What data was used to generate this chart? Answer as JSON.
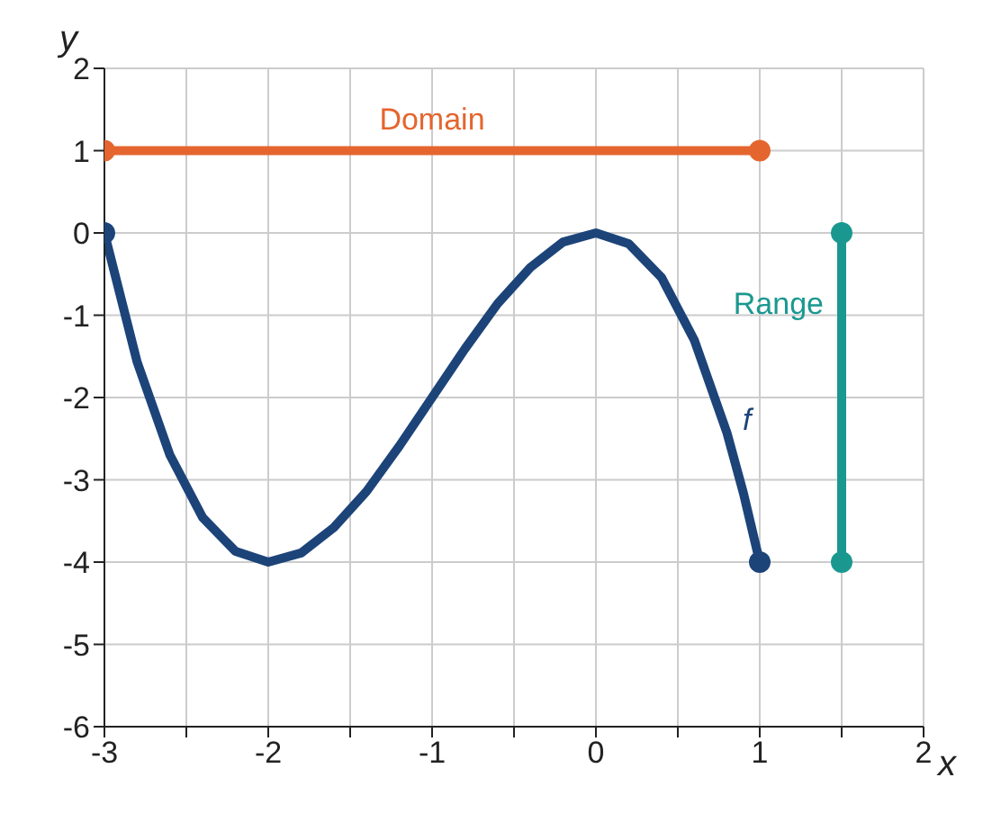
{
  "chart_data": {
    "type": "line",
    "xlabel": "x",
    "ylabel": "y",
    "xlim": [
      -3,
      2
    ],
    "ylim": [
      -6,
      2
    ],
    "xticks": [
      -3,
      {
        "value": -2.5,
        "label": null
      },
      -2,
      {
        "value": -1.5,
        "label": null
      },
      -1,
      {
        "value": -0.5,
        "label": null
      },
      0,
      {
        "value": 0.5,
        "label": null
      },
      1,
      {
        "value": 1.5,
        "label": null
      },
      2
    ],
    "yticks": [
      -6,
      -5,
      -4,
      -3,
      -2,
      -1,
      0,
      1,
      2
    ],
    "grid": true,
    "line_style": "solid",
    "series": [
      {
        "name": "Domain",
        "color": "#e5652e",
        "marker": "circle",
        "x": [
          -3,
          1
        ],
        "values": [
          1,
          1
        ]
      },
      {
        "name": "Range",
        "color": "#1a9890",
        "marker": "circle",
        "x": [
          1.5,
          1.5
        ],
        "values": [
          0,
          -4
        ]
      },
      {
        "name": "f",
        "color": "#1d4479",
        "marker": "none",
        "x": [
          -3,
          -2.8,
          -2.6,
          -2.4,
          -2.2,
          -2,
          -1.8,
          -1.6,
          -1.4,
          -1.2,
          -1,
          -0.8,
          -0.6,
          -0.4,
          -0.2,
          0,
          0.2,
          0.4,
          0.6,
          0.8,
          0.9,
          1
        ],
        "values": [
          0,
          -1.57,
          -2.7,
          -3.46,
          -3.87,
          -4,
          -3.89,
          -3.58,
          -3.14,
          -2.59,
          -2,
          -1.41,
          -0.86,
          -0.42,
          -0.11,
          0,
          -0.13,
          -0.54,
          -1.3,
          -2.43,
          -3.16,
          -4
        ]
      },
      {
        "type": "scatter",
        "color": "#1d4479",
        "marker": "circle",
        "x": [
          -3,
          1
        ],
        "values": [
          0,
          -4
        ]
      }
    ]
  }
}
